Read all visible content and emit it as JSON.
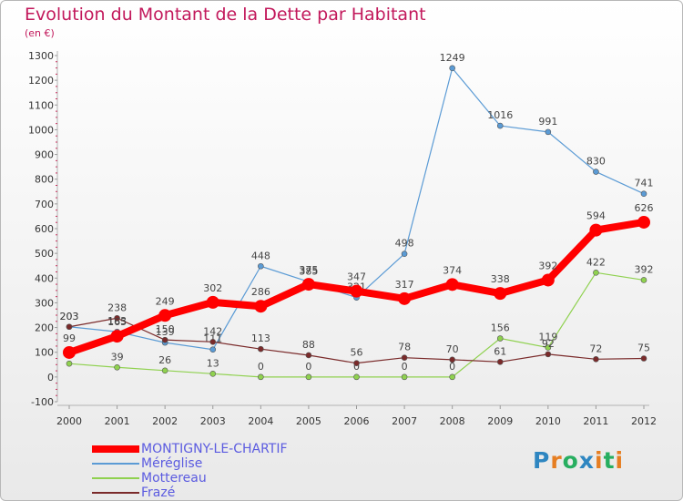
{
  "header": {
    "title": "Evolution du Montant de la Dette par Habitant",
    "subtitle": "(en €)"
  },
  "chart_data": {
    "type": "line",
    "title": "Evolution du Montant de la Dette par Habitant",
    "subtitle": "(en €)",
    "x": [
      "2000",
      "2001",
      "2002",
      "2003",
      "2004",
      "2005",
      "2006",
      "2007",
      "2008",
      "2009",
      "2010",
      "2011",
      "2012"
    ],
    "ylim": [
      -100,
      1300
    ],
    "yticks": [
      -100,
      0,
      100,
      200,
      300,
      400,
      500,
      600,
      700,
      800,
      900,
      1000,
      1100,
      1200,
      1300
    ],
    "grid": false,
    "legend_position": "bottom-left",
    "series": [
      {
        "name": "MONTIGNY-LE-CHARTIF",
        "color": "#ff0000",
        "emphasis": true,
        "values": [
          99,
          165,
          249,
          302,
          286,
          375,
          347,
          317,
          374,
          338,
          392,
          594,
          626
        ]
      },
      {
        "name": "Méréglise",
        "color": "#5b9bd5",
        "values": [
          203,
          183,
          139,
          111,
          448,
          385,
          321,
          498,
          1249,
          1016,
          991,
          830,
          741
        ]
      },
      {
        "name": "Mottereau",
        "color": "#8fd14f",
        "values": [
          54,
          39,
          26,
          13,
          0,
          0,
          0,
          0,
          0,
          156,
          119,
          422,
          392
        ]
      },
      {
        "name": "Frazé",
        "color": "#7a2a2a",
        "values": [
          203,
          238,
          150,
          142,
          113,
          88,
          56,
          78,
          70,
          61,
          92,
          72,
          75
        ]
      }
    ]
  },
  "branding": {
    "logo_letters": [
      "P",
      "r",
      "o",
      "x",
      "i",
      "t",
      "i"
    ],
    "logo_colors": [
      "#2e86c1",
      "#e67e22",
      "#27ae60",
      "#2e86c1",
      "#e67e22",
      "#27ae60",
      "#e67e22"
    ]
  }
}
